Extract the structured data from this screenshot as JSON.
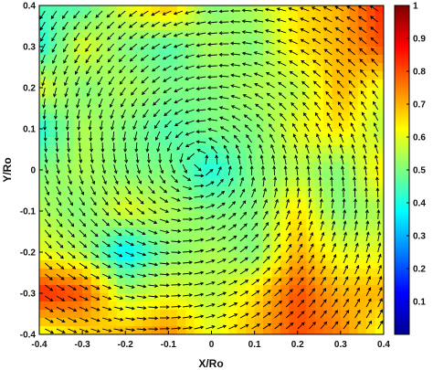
{
  "chart_data": {
    "type": "heatmap",
    "title": "",
    "xlabel": "X/Ro",
    "ylabel": "Y/Ro",
    "xlim": [
      -0.4,
      0.4
    ],
    "ylim": [
      -0.4,
      0.4
    ],
    "x_ticks": [
      {
        "value": -0.4,
        "label": "-0.4"
      },
      {
        "value": -0.3,
        "label": "-0.3"
      },
      {
        "value": -0.2,
        "label": "-0.2"
      },
      {
        "value": -0.1,
        "label": "-0.1"
      },
      {
        "value": 0,
        "label": "0"
      },
      {
        "value": 0.1,
        "label": "0.1"
      },
      {
        "value": 0.2,
        "label": "0.2"
      },
      {
        "value": 0.3,
        "label": "0.3"
      },
      {
        "value": 0.4,
        "label": "0.4"
      }
    ],
    "y_ticks": [
      {
        "value": 0.4,
        "label": "0.4"
      },
      {
        "value": 0.3,
        "label": "0.3"
      },
      {
        "value": 0.2,
        "label": "0.2"
      },
      {
        "value": 0.1,
        "label": "0.1"
      },
      {
        "value": 0,
        "label": "0"
      },
      {
        "value": -0.1,
        "label": "-0.1"
      },
      {
        "value": -0.2,
        "label": "-0.2"
      },
      {
        "value": -0.3,
        "label": "-0.3"
      },
      {
        "value": -0.4,
        "label": "-0.4"
      }
    ],
    "colorbar": {
      "colormap": "jet",
      "range": [
        0,
        1
      ],
      "ticks": [
        {
          "value": 1,
          "label": "1"
        },
        {
          "value": 0.9,
          "label": "0.9"
        },
        {
          "value": 0.8,
          "label": "0.8"
        },
        {
          "value": 0.7,
          "label": "0.7"
        },
        {
          "value": 0.6,
          "label": "0.6"
        },
        {
          "value": 0.5,
          "label": "0.5"
        },
        {
          "value": 0.4,
          "label": "0.4"
        },
        {
          "value": 0.3,
          "label": "0.3"
        },
        {
          "value": 0.2,
          "label": "0.2"
        },
        {
          "value": 0.1,
          "label": "0.1"
        }
      ]
    },
    "field": {
      "description": "approximate scalar magnitude sampled on a 9x9 grid; rows from y=0.4 (top) to y=-0.4 (bottom), columns from x=-0.4 to x=0.4",
      "x": [
        -0.4,
        -0.3,
        -0.2,
        -0.1,
        0,
        0.1,
        0.2,
        0.3,
        0.4
      ],
      "y": [
        0.4,
        0.3,
        0.2,
        0.1,
        0,
        -0.1,
        -0.2,
        -0.3,
        -0.4
      ],
      "values": [
        [
          0.45,
          0.45,
          0.6,
          0.7,
          0.5,
          0.55,
          0.65,
          0.7,
          0.85
        ],
        [
          0.4,
          0.6,
          0.5,
          0.45,
          0.55,
          0.5,
          0.65,
          0.7,
          0.8
        ],
        [
          0.6,
          0.5,
          0.55,
          0.5,
          0.5,
          0.55,
          0.55,
          0.7,
          0.6
        ],
        [
          0.4,
          0.55,
          0.5,
          0.45,
          0.5,
          0.5,
          0.6,
          0.65,
          0.55
        ],
        [
          0.5,
          0.55,
          0.5,
          0.5,
          0.4,
          0.5,
          0.55,
          0.5,
          0.65
        ],
        [
          0.55,
          0.5,
          0.6,
          0.55,
          0.5,
          0.5,
          0.65,
          0.5,
          0.55
        ],
        [
          0.6,
          0.55,
          0.35,
          0.5,
          0.55,
          0.5,
          0.7,
          0.6,
          0.6
        ],
        [
          0.85,
          0.8,
          0.55,
          0.6,
          0.55,
          0.65,
          0.8,
          0.7,
          0.7
        ],
        [
          0.6,
          0.65,
          0.7,
          0.75,
          0.6,
          0.7,
          0.8,
          0.75,
          0.6
        ]
      ]
    },
    "vectors": {
      "description": "counter-clockwise swirling vortex centred near (-0.03, 0.02)",
      "center": [
        -0.03,
        0.02
      ],
      "rotation": "counterclockwise"
    }
  }
}
